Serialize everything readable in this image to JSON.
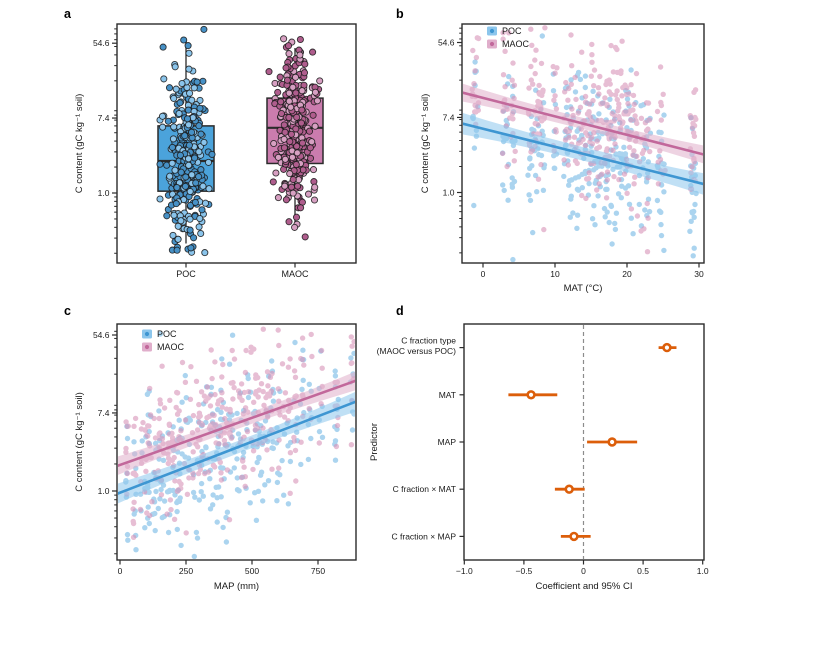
{
  "colors": {
    "poc_box_fill": "#4BA3DB",
    "poc_point": "#4791C6",
    "poc_point_light": "#8AC4EB",
    "poc_scatter": "#74B9E6",
    "poc_line": "#3E96D2",
    "poc_band": "#8CC6EC",
    "maoc_box_fill": "#CB7CAE",
    "maoc_point": "#AF5D8D",
    "maoc_point_light": "#D7A0C2",
    "maoc_scatter": "#D893B8",
    "maoc_line": "#C2689B",
    "maoc_band": "#E0AECB",
    "forest": "#DC5E0A",
    "axis": "#2B2B2B",
    "text": "#1A1A1A",
    "zero_line": "#8C8C8C"
  },
  "chart_data": [
    {
      "id": "a",
      "panel_label": "a",
      "type": "box",
      "ylabel": "C content (gC kg⁻¹ soil)",
      "yscale": "ln",
      "ytick_values": [
        54.6,
        7.4,
        1.0
      ],
      "ytick_labels": [
        "54.6",
        "7.4",
        "1.0"
      ],
      "categories": [
        "POC",
        "MAOC"
      ],
      "series": [
        {
          "name": "POC",
          "median": 2.35,
          "q1": 1.05,
          "q3": 6.0,
          "whisker_lo": 0.26,
          "whisker_hi": 62,
          "n_points": 310,
          "points_ln_mean": 0.9,
          "points_ln_sd": 1.25
        },
        {
          "name": "MAOC",
          "median": 5.7,
          "q1": 2.2,
          "q3": 12.6,
          "whisker_lo": 0.46,
          "whisker_hi": 48,
          "n_points": 310,
          "points_ln_mean": 1.7,
          "points_ln_sd": 1.05
        }
      ]
    },
    {
      "id": "b",
      "panel_label": "b",
      "type": "scatter",
      "xlabel": "MAT (°C)",
      "ylabel": "C content (gC kg⁻¹ soil)",
      "yscale": "ln",
      "ytick_values": [
        54.6,
        7.4,
        1.0
      ],
      "ytick_labels": [
        "54.6",
        "7.4",
        "1.0"
      ],
      "xtick_values": [
        0,
        10,
        20,
        30
      ],
      "xtick_labels": [
        "0",
        "10",
        "20",
        "30"
      ],
      "xdomain": [
        -2.9,
        30.7
      ],
      "legend": [
        "POC",
        "MAOC"
      ],
      "sd_ln": 1.05,
      "site_jitter": 0.6,
      "sites": [
        -1.2,
        -0.8,
        3,
        3.5,
        4.2,
        6.5,
        7,
        7.5,
        8,
        8.3,
        10,
        11.5,
        12,
        12.3,
        13,
        13.5,
        14,
        14.5,
        15,
        15.3,
        15.8,
        16,
        16.4,
        17,
        17.3,
        17.8,
        18,
        18.4,
        19,
        19.3,
        19.8,
        20,
        20.3,
        20.8,
        21.2,
        22,
        22.5,
        23,
        24.5,
        25,
        29,
        29.3
      ],
      "series": [
        {
          "name": "POC",
          "regression": {
            "x": [
              -2.9,
              30.7
            ],
            "y": [
              6.3,
              1.25
            ]
          },
          "ci_ln": 0.18
        },
        {
          "name": "MAOC",
          "regression": {
            "x": [
              -2.9,
              30.7
            ],
            "y": [
              14.4,
              2.75
            ]
          },
          "ci_ln": 0.15
        }
      ]
    },
    {
      "id": "c",
      "panel_label": "c",
      "type": "scatter",
      "xlabel": "MAP (mm)",
      "ylabel": "C content (gC kg⁻¹ soil)",
      "yscale": "ln",
      "ytick_values": [
        54.6,
        7.4,
        1.0
      ],
      "ytick_labels": [
        "54.6",
        "7.4",
        "1.0"
      ],
      "xtick_values": [
        0,
        250,
        500,
        750
      ],
      "xtick_labels": [
        "0",
        "250",
        "500",
        "750"
      ],
      "xdomain": [
        -11,
        894
      ],
      "legend": [
        "POC",
        "MAOC"
      ],
      "sd_ln": 0.95,
      "site_jitter": 14,
      "sites": [
        25,
        55,
        80,
        100,
        115,
        130,
        150,
        165,
        185,
        200,
        215,
        230,
        250,
        265,
        280,
        295,
        310,
        325,
        340,
        355,
        370,
        385,
        400,
        415,
        430,
        450,
        465,
        480,
        500,
        515,
        530,
        545,
        560,
        575,
        600,
        620,
        640,
        665,
        690,
        720,
        760,
        820,
        880
      ],
      "series": [
        {
          "name": "POC",
          "regression": {
            "x": [
              -11,
              894
            ],
            "y": [
              0.93,
              9.9
            ]
          },
          "ci_ln": 0.16
        },
        {
          "name": "MAOC",
          "regression": {
            "x": [
              -11,
              894
            ],
            "y": [
              1.9,
              16.9
            ]
          },
          "ci_ln": 0.15
        }
      ]
    },
    {
      "id": "d",
      "panel_label": "d",
      "type": "forest",
      "xlabel": "Coefficient and 95% CI",
      "ylabel": "Predictor",
      "xtick_values": [
        -1,
        -0.5,
        0,
        0.5,
        1
      ],
      "xtick_labels": [
        "−1.0",
        "−0.5",
        "0",
        "0.5",
        "1.0"
      ],
      "zero_line": 0,
      "rows": [
        {
          "label_lines": [
            "C fraction type",
            "(MAOC versus POC)"
          ],
          "estimate": 0.7,
          "ci": [
            0.63,
            0.78
          ]
        },
        {
          "label_lines": [
            "MAT"
          ],
          "estimate": -0.44,
          "ci": [
            -0.63,
            -0.22
          ]
        },
        {
          "label_lines": [
            "MAP"
          ],
          "estimate": 0.24,
          "ci": [
            0.03,
            0.45
          ]
        },
        {
          "label_lines": [
            "C fraction × MAT"
          ],
          "estimate": -0.12,
          "ci": [
            -0.24,
            0.01
          ]
        },
        {
          "label_lines": [
            "C fraction × MAP"
          ],
          "estimate": -0.08,
          "ci": [
            -0.19,
            0.06
          ]
        }
      ]
    }
  ]
}
